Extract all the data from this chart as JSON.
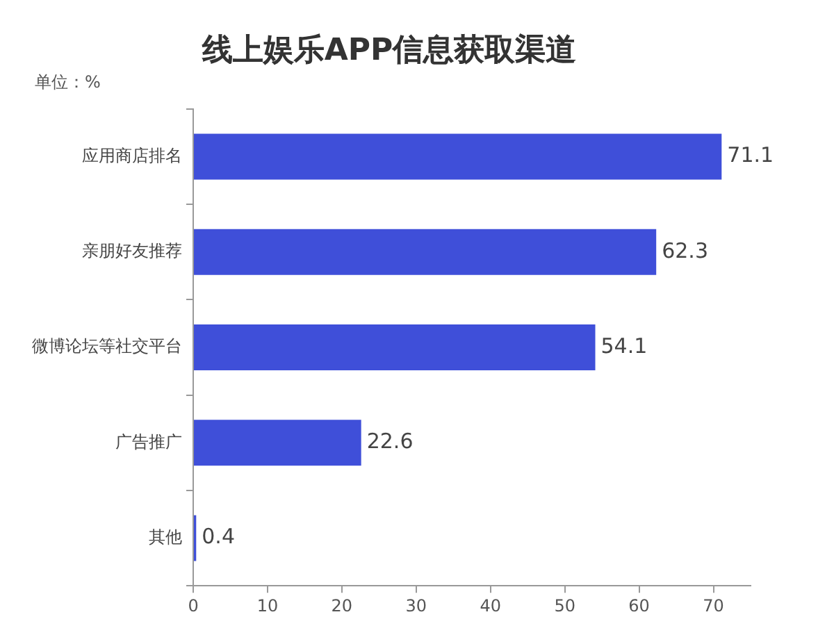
{
  "chart_data": {
    "type": "bar",
    "orientation": "horizontal",
    "title": "线上娱乐APP信息获取渠道",
    "annotations": [
      "单位：%"
    ],
    "categories": [
      "应用商店排名",
      "亲朋好友推荐",
      "微博论坛等社交平台",
      "广告推广",
      "其他"
    ],
    "values": [
      71.1,
      62.3,
      54.1,
      22.6,
      0.4
    ],
    "color": "#3f4fd9",
    "data_labels": true,
    "xlim": [
      0,
      75
    ],
    "xticks": [
      0,
      10,
      20,
      30,
      40,
      50,
      60,
      70
    ],
    "grid": false,
    "legend": false
  }
}
